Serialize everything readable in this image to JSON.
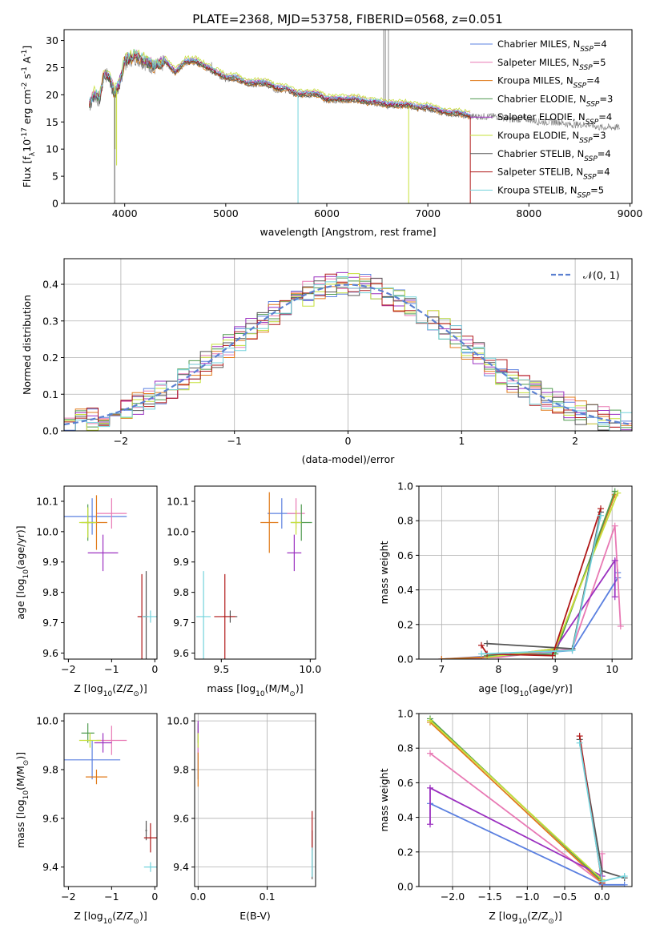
{
  "figure_title": "PLATE=2368, MJD=53758, FIBERID=0568, z=0.051",
  "colors": {
    "Chabrier MILES": "#5b80e0",
    "Salpeter MILES": "#e879b4",
    "Kroupa MILES": "#e07a1a",
    "Chabrier ELODIE": "#4f9a4f",
    "Salpeter ELODIE": "#9b30c0",
    "Kroupa ELODIE": "#c6e03a",
    "Chabrier STELIB": "#555555",
    "Salpeter STELIB": "#b01818",
    "Kroupa STELIB": "#73d3dc"
  },
  "chart_data": [
    {
      "type": "line",
      "title": "PLATE=2368, MJD=53758, FIBERID=0568, z=0.051",
      "xlabel": "wavelength [Angstrom, rest frame]",
      "ylabel_main": "Flux [f",
      "ylabel_sub": "λ",
      "ylabel_rest": "10",
      "ylabel_sup": "-17",
      "ylabel_units": " erg cm",
      "ylabel_sup2": "-2",
      "ylabel_units2": " s",
      "ylabel_sup3": "-1",
      "ylabel_units3": " A",
      "ylabel_sup4": "-1",
      "ylabel_end": "]",
      "xlim": [
        3400,
        9020
      ],
      "ylim": [
        0,
        32
      ],
      "xticks": [
        "4000",
        "5000",
        "6000",
        "7000",
        "8000",
        "9000"
      ],
      "yticks": [
        "0",
        "5",
        "10",
        "15",
        "20",
        "25",
        "30"
      ],
      "legend_placement": "upper right",
      "legend": [
        {
          "name": "Chabrier MILES",
          "nssp": "4"
        },
        {
          "name": "Salpeter MILES",
          "nssp": "5"
        },
        {
          "name": "Kroupa MILES",
          "nssp": "4"
        },
        {
          "name": "Chabrier ELODIE",
          "nssp": "3"
        },
        {
          "name": "Salpeter ELODIE",
          "nssp": "4"
        },
        {
          "name": "Kroupa ELODIE",
          "nssp": "3"
        },
        {
          "name": "Chabrier STELIB",
          "nssp": "4"
        },
        {
          "name": "Salpeter STELIB",
          "nssp": "4"
        },
        {
          "name": "Kroupa STELIB",
          "nssp": "5"
        }
      ],
      "data_x": [
        3650,
        3700,
        3750,
        3800,
        3850,
        3900,
        3950,
        4000,
        4100,
        4200,
        4300,
        4400,
        4500,
        4600,
        4700,
        4800,
        4900,
        5000,
        5100,
        5200,
        5300,
        5400,
        5500,
        5600,
        5700,
        5800,
        5900,
        6000,
        6100,
        6200,
        6300,
        6400,
        6500,
        6600,
        6700,
        6800,
        6900,
        7000,
        7100,
        7200,
        7300,
        7400,
        7500,
        7600,
        7700,
        7800,
        7900,
        8000,
        8100,
        8200,
        8300,
        8400,
        8500,
        8600,
        8700,
        8800,
        8900
      ],
      "data_y": [
        18,
        20,
        19,
        24,
        23,
        20,
        22,
        26,
        27,
        26,
        25,
        26,
        24,
        26,
        26,
        25,
        24,
        23,
        23,
        22,
        22,
        22,
        21,
        21,
        20,
        20,
        20,
        19,
        19,
        19,
        19,
        18.5,
        18.5,
        18,
        18,
        18,
        17.5,
        17.5,
        17,
        16.5,
        16.5,
        16,
        16,
        16,
        16,
        15.5,
        15.5,
        15.5,
        15,
        15,
        15,
        14.5,
        14.5,
        14.5,
        14,
        14,
        14
      ],
      "model_x_range": [
        3650,
        7420
      ],
      "model_end_drop": [
        7400,
        7420
      ],
      "dropouts": [
        {
          "model": "Kroupa ELODIE",
          "x": 3905,
          "y": 10
        },
        {
          "model": "Kroupa ELODIE",
          "x": 3920,
          "y": 7
        },
        {
          "model": "Chabrier STELIB",
          "x": 3900,
          "y": 0
        },
        {
          "model": "Kroupa STELIB",
          "x": 5715,
          "y": 0
        },
        {
          "model": "Kroupa ELODIE",
          "x": 6810,
          "y": 0
        },
        {
          "model": "Salpeter STELIB",
          "x": 7420,
          "y": 0
        }
      ]
    },
    {
      "type": "line",
      "xlabel": "(data-model)/error",
      "ylabel": "Normed distribution",
      "xlim": [
        -2.5,
        2.5
      ],
      "ylim": [
        0,
        0.47
      ],
      "xticks": [
        "−2",
        "−1",
        "0",
        "1",
        "2"
      ],
      "yticks": [
        "0.0",
        "0.1",
        "0.2",
        "0.3",
        "0.4"
      ],
      "grid": true,
      "legend_placement": "upper right",
      "legend_label": "𝒩(0, 1)",
      "reference_curve": {
        "mean": 0,
        "sigma": 1,
        "peak": 0.399
      },
      "bin_width": 0.1
    },
    {
      "type": "scatter",
      "xlabel": "Z [log",
      "xlabel_sub": "10",
      "xlabel_rest": "(Z/Z",
      "xlabel_sub2": "⊙",
      "xlabel_end": ")]",
      "ylabel": "age  [log",
      "ylabel_sub": "10",
      "ylabel_rest": "(age/yr)]",
      "xlim": [
        -2.1,
        0.05
      ],
      "ylim": [
        9.58,
        10.15
      ],
      "xticks": [
        "−2",
        "−1",
        "0"
      ],
      "yticks": [
        "9.6",
        "9.7",
        "9.8",
        "9.9",
        "10.0",
        "10.1"
      ],
      "points": [
        {
          "series": "Chabrier MILES",
          "x": -1.45,
          "xerr": 0.8,
          "y": 10.05,
          "yerr": 0.06
        },
        {
          "series": "Salpeter MILES",
          "x": -1.0,
          "xerr": 0.35,
          "y": 10.06,
          "yerr": 0.05
        },
        {
          "series": "Kroupa MILES",
          "x": -1.35,
          "xerr": 0.25,
          "y": 10.03,
          "yerr": 0.09
        },
        {
          "series": "Chabrier ELODIE",
          "x": -1.55,
          "xerr": 0.15,
          "y": 10.03,
          "yerr": 0.06
        },
        {
          "series": "Salpeter ELODIE",
          "x": -1.2,
          "xerr": 0.35,
          "y": 9.93,
          "yerr": 0.06
        },
        {
          "series": "Kroupa ELODIE",
          "x": -1.55,
          "xerr": 0.2,
          "y": 10.03,
          "yerr": 0.05
        },
        {
          "series": "Chabrier STELIB",
          "x": -0.2,
          "xerr": 0.05,
          "y": 9.72,
          "yerr": 0.15
        },
        {
          "series": "Salpeter STELIB",
          "x": -0.3,
          "xerr": 0.1,
          "y": 9.72,
          "yerr": 0.14
        },
        {
          "series": "Kroupa STELIB",
          "x": -0.1,
          "xerr": 0.2,
          "y": 9.72,
          "yerr": 0.02
        }
      ]
    },
    {
      "type": "scatter",
      "xlabel": "mass [log",
      "xlabel_sub": "10",
      "xlabel_rest": "(M/M",
      "xlabel_sub2": "⊙",
      "xlabel_end": ")]",
      "xlim": [
        9.35,
        10.03
      ],
      "ylim": [
        9.58,
        10.15
      ],
      "xticks": [
        "9.5",
        "10.0"
      ],
      "yticks": [
        "9.6",
        "9.7",
        "9.8",
        "9.9",
        "10.0",
        "10.1"
      ],
      "points": [
        {
          "series": "Chabrier MILES",
          "x": 9.84,
          "xerr": 0.08,
          "y": 10.06,
          "yerr": 0.05
        },
        {
          "series": "Salpeter MILES",
          "x": 9.92,
          "xerr": 0.05,
          "y": 10.06,
          "yerr": 0.05
        },
        {
          "series": "Kroupa MILES",
          "x": 9.77,
          "xerr": 0.05,
          "y": 10.03,
          "yerr": 0.1
        },
        {
          "series": "Chabrier ELODIE",
          "x": 9.95,
          "xerr": 0.06,
          "y": 10.03,
          "yerr": 0.06
        },
        {
          "series": "Salpeter ELODIE",
          "x": 9.91,
          "xerr": 0.04,
          "y": 9.93,
          "yerr": 0.06
        },
        {
          "series": "Kroupa ELODIE",
          "x": 9.92,
          "xerr": 0.03,
          "y": 10.03,
          "yerr": 0.04
        },
        {
          "series": "Chabrier STELIB",
          "x": 9.55,
          "xerr": 0.04,
          "y": 9.72,
          "yerr": 0.02
        },
        {
          "series": "Salpeter STELIB",
          "x": 9.52,
          "xerr": 0.06,
          "y": 9.72,
          "yerr": 0.14
        },
        {
          "series": "Kroupa STELIB",
          "x": 9.4,
          "xerr": 0.04,
          "y": 9.72,
          "yerr": 0.15
        }
      ]
    },
    {
      "type": "line",
      "xlabel": "age  [log",
      "xlabel_sub": "10",
      "xlabel_rest": "(age/yr)]",
      "ylabel": "mass weight",
      "xlim": [
        6.6,
        10.35
      ],
      "ylim": [
        0,
        1.0
      ],
      "xticks": [
        "7",
        "8",
        "9",
        "10"
      ],
      "yticks": [
        "0.0",
        "0.2",
        "0.4",
        "0.6",
        "0.8",
        "1.0"
      ],
      "grid": true,
      "series": [
        {
          "name": "Chabrier MILES",
          "x": [
            7.0,
            8.0,
            9.3,
            10.1,
            10.1
          ],
          "y": [
            0.0,
            0.02,
            0.05,
            0.47,
            0.5
          ]
        },
        {
          "name": "Salpeter MILES",
          "x": [
            7.0,
            8.0,
            9.3,
            10.05,
            10.15
          ],
          "y": [
            0.0,
            0.01,
            0.06,
            0.77,
            0.19
          ]
        },
        {
          "name": "Kroupa MILES",
          "x": [
            7.0,
            7.7,
            9.0,
            10.05
          ],
          "y": [
            0.0,
            0.01,
            0.05,
            0.95
          ]
        },
        {
          "name": "Chabrier ELODIE",
          "x": [
            7.8,
            9.0,
            10.05
          ],
          "y": [
            0.02,
            0.03,
            0.97
          ]
        },
        {
          "name": "Salpeter ELODIE",
          "x": [
            7.8,
            9.0,
            10.05,
            10.05
          ],
          "y": [
            0.01,
            0.06,
            0.57,
            0.36
          ]
        },
        {
          "name": "Kroupa ELODIE",
          "x": [
            7.8,
            9.0,
            10.1
          ],
          "y": [
            0.01,
            0.06,
            0.96
          ]
        },
        {
          "name": "Chabrier STELIB",
          "x": [
            7.8,
            9.3,
            9.8
          ],
          "y": [
            0.09,
            0.06,
            0.85
          ]
        },
        {
          "name": "Salpeter STELIB",
          "x": [
            7.7,
            7.8,
            8.95,
            9.8
          ],
          "y": [
            0.08,
            0.03,
            0.02,
            0.87
          ]
        },
        {
          "name": "Kroupa STELIB",
          "x": [
            7.7,
            9.3,
            9.8
          ],
          "y": [
            0.03,
            0.05,
            0.83
          ]
        }
      ]
    },
    {
      "type": "scatter",
      "xlabel": "Z [log",
      "xlabel_sub": "10",
      "xlabel_rest": "(Z/Z",
      "xlabel_sub2": "⊙",
      "xlabel_end": ")]",
      "ylabel": "mass [log",
      "ylabel_sub": "10",
      "ylabel_rest": "(M/M",
      "ylabel_sub2": "⊙",
      "ylabel_end": ")]",
      "xlim": [
        -2.1,
        0.05
      ],
      "ylim": [
        9.32,
        10.03
      ],
      "xticks": [
        "−2",
        "−1",
        "0"
      ],
      "yticks": [
        "9.4",
        "9.6",
        "9.8",
        "10.0"
      ],
      "points": [
        {
          "series": "Chabrier MILES",
          "x": -1.45,
          "xerr": 0.65,
          "y": 9.84,
          "yerr": 0.08
        },
        {
          "series": "Salpeter MILES",
          "x": -1.0,
          "xerr": 0.35,
          "y": 9.92,
          "yerr": 0.06
        },
        {
          "series": "Kroupa MILES",
          "x": -1.35,
          "xerr": 0.25,
          "y": 9.77,
          "yerr": 0.03
        },
        {
          "series": "Chabrier ELODIE",
          "x": -1.55,
          "xerr": 0.15,
          "y": 9.95,
          "yerr": 0.04
        },
        {
          "series": "Salpeter ELODIE",
          "x": -1.2,
          "xerr": 0.2,
          "y": 9.91,
          "yerr": 0.04
        },
        {
          "series": "Kroupa ELODIE",
          "x": -1.5,
          "xerr": 0.25,
          "y": 9.92,
          "yerr": 0.03
        },
        {
          "series": "Chabrier STELIB",
          "x": -0.2,
          "xerr": 0.02,
          "y": 9.55,
          "yerr": 0.04
        },
        {
          "series": "Salpeter STELIB",
          "x": -0.1,
          "xerr": 0.15,
          "y": 9.52,
          "yerr": 0.06
        },
        {
          "series": "Kroupa STELIB",
          "x": -0.1,
          "xerr": 0.15,
          "y": 9.4,
          "yerr": 0.02
        }
      ]
    },
    {
      "type": "scatter",
      "xlabel": "E(B-V)",
      "xlim": [
        -0.005,
        0.17
      ],
      "ylim": [
        9.32,
        10.03
      ],
      "xticks": [
        "0.0",
        "0.1"
      ],
      "yticks": [
        "9.4",
        "9.6",
        "9.8",
        "10.0"
      ],
      "grid": true,
      "points": [
        {
          "series": "Chabrier MILES",
          "x": 0.0,
          "y": 9.84,
          "yerr": 0.08
        },
        {
          "series": "Salpeter MILES",
          "x": 0.0,
          "y": 9.92,
          "yerr": 0.06
        },
        {
          "series": "Kroupa MILES",
          "x": 0.0,
          "y": 9.8,
          "yerr": 0.07
        },
        {
          "series": "Chabrier ELODIE",
          "x": 0.0,
          "y": 9.95,
          "yerr": 0.04
        },
        {
          "series": "Salpeter ELODIE",
          "x": 0.0,
          "y": 9.96,
          "yerr": 0.04
        },
        {
          "series": "Kroupa ELODIE",
          "x": 0.0,
          "y": 9.92,
          "yerr": 0.03
        },
        {
          "series": "Chabrier STELIB",
          "x": 0.165,
          "y": 9.45,
          "yerr": 0.1
        },
        {
          "series": "Salpeter STELIB",
          "x": 0.165,
          "y": 9.55,
          "yerr": 0.08
        },
        {
          "series": "Kroupa STELIB",
          "x": 0.165,
          "y": 9.42,
          "yerr": 0.06
        }
      ]
    },
    {
      "type": "line",
      "xlabel": "Z [log",
      "xlabel_sub": "10",
      "xlabel_rest": "(Z/Z",
      "xlabel_sub2": "⊙",
      "xlabel_end": ")]",
      "ylabel": "mass weight",
      "xlim": [
        -2.45,
        0.4
      ],
      "ylim": [
        0,
        1.0
      ],
      "xticks": [
        "−2.0",
        "−1.5",
        "−1.0",
        "−0.5",
        "0.0"
      ],
      "yticks": [
        "0.0",
        "0.2",
        "0.4",
        "0.6",
        "0.8",
        "1.0"
      ],
      "grid": true,
      "series": [
        {
          "name": "Chabrier MILES",
          "x": [
            -2.3,
            0.0,
            0.3
          ],
          "y": [
            0.48,
            0.01,
            0.01
          ]
        },
        {
          "name": "Salpeter MILES",
          "x": [
            -2.3,
            0.0,
            0.0
          ],
          "y": [
            0.77,
            0.02,
            0.19
          ]
        },
        {
          "name": "Kroupa MILES",
          "x": [
            -2.3,
            0.0
          ],
          "y": [
            0.95,
            0.02
          ]
        },
        {
          "name": "Chabrier ELODIE",
          "x": [
            -2.3,
            0.0
          ],
          "y": [
            0.97,
            0.03
          ]
        },
        {
          "name": "Salpeter ELODIE",
          "x": [
            -2.3,
            -2.3,
            -0.0
          ],
          "y": [
            0.36,
            0.57,
            0.06
          ]
        },
        {
          "name": "Kroupa ELODIE",
          "x": [
            -2.3,
            0.0
          ],
          "y": [
            0.96,
            0.04
          ]
        },
        {
          "name": "Chabrier STELIB",
          "x": [
            -0.3,
            0.0,
            0.3
          ],
          "y": [
            0.85,
            0.09,
            0.05
          ]
        },
        {
          "name": "Salpeter STELIB",
          "x": [
            -0.3,
            0.0
          ],
          "y": [
            0.87,
            0.02
          ]
        },
        {
          "name": "Kroupa STELIB",
          "x": [
            -0.3,
            0.0,
            0.3
          ],
          "y": [
            0.83,
            0.03,
            0.06
          ]
        }
      ]
    }
  ]
}
